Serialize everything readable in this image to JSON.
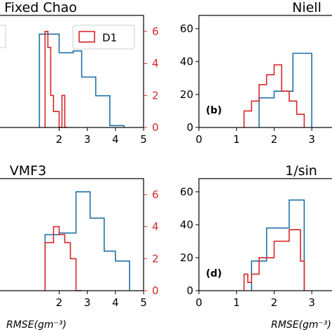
{
  "colors": {
    "blue": "#1f6fa8",
    "red": "#d62728",
    "axis": "#000000"
  },
  "chart_data": [
    {
      "type": "histogram",
      "title": "Fixed Chao",
      "panel_label": "",
      "xlabel": "",
      "xticks": [
        "2",
        "3",
        "4",
        "5"
      ],
      "left_yticks": [],
      "right_yticks": [
        "0",
        "2",
        "4",
        "6"
      ],
      "legend": [
        "D1"
      ],
      "series": [
        {
          "edges": [
            1.3,
            1.6,
            2.0,
            2.5,
            2.8,
            3.3,
            3.8,
            4.3
          ],
          "values": [
            50,
            50,
            40,
            41,
            27,
            17,
            1
          ],
          "axis": "left",
          "color": "blue"
        },
        {
          "edges": [
            1.5,
            1.6,
            1.7,
            1.8,
            1.9,
            2.0,
            2.1,
            2.2,
            2.3
          ],
          "values": [
            6,
            5,
            2,
            1,
            1,
            0,
            2,
            0
          ],
          "axis": "right",
          "color": "red",
          "name": "D1"
        }
      ]
    },
    {
      "type": "histogram",
      "title": "Niell",
      "panel_label": "(b)",
      "xlabel": "",
      "xticks": [
        "0",
        "1",
        "2",
        "3"
      ],
      "left_yticks": [
        "0",
        "20",
        "40",
        "60"
      ],
      "right_yticks": [],
      "legend": [],
      "series": [
        {
          "edges": [
            1.6,
            2.0,
            2.5,
            3.0
          ],
          "values": [
            18,
            22,
            45
          ],
          "axis": "left",
          "color": "blue"
        },
        {
          "edges": [
            1.2,
            1.4,
            1.6,
            1.8,
            2.0,
            2.2,
            2.4,
            2.6,
            2.8
          ],
          "values": [
            10,
            16,
            26,
            32,
            38,
            22,
            16,
            8
          ],
          "axis": "left",
          "color": "red"
        }
      ]
    },
    {
      "type": "histogram",
      "title": "VMF3",
      "panel_label": "",
      "xlabel": "RMSE(gm⁻³)",
      "xticks": [
        "2",
        "3",
        "4",
        "5"
      ],
      "left_yticks": [],
      "right_yticks": [
        "0",
        "2",
        "4",
        "6"
      ],
      "legend": [],
      "series": [
        {
          "edges": [
            1.5,
            2.0,
            2.6,
            3.1,
            3.6,
            4.0,
            4.5
          ],
          "values": [
            34,
            35,
            60,
            44,
            24,
            18
          ],
          "axis": "left",
          "color": "blue"
        },
        {
          "edges": [
            1.5,
            1.8,
            2.0,
            2.2,
            2.4,
            2.6,
            2.8
          ],
          "values": [
            3,
            4,
            3.5,
            3,
            2,
            0
          ],
          "axis": "right",
          "color": "red"
        }
      ]
    },
    {
      "type": "histogram",
      "title": "1/sin",
      "panel_label": "(d)",
      "xlabel": "RMSE(gm⁻³)",
      "xticks": [
        "0",
        "1",
        "2",
        "3"
      ],
      "left_yticks": [
        "0",
        "20",
        "40",
        "60"
      ],
      "right_yticks": [],
      "legend": [],
      "series": [
        {
          "edges": [
            1.4,
            1.8,
            2.4,
            2.8
          ],
          "values": [
            18,
            38,
            55
          ],
          "axis": "left",
          "color": "blue"
        },
        {
          "edges": [
            1.2,
            1.3,
            1.4,
            1.6,
            2.0,
            2.4,
            2.7,
            2.8
          ],
          "values": [
            10,
            5,
            10,
            20,
            30,
            37,
            18
          ],
          "axis": "left",
          "color": "red"
        }
      ]
    }
  ]
}
